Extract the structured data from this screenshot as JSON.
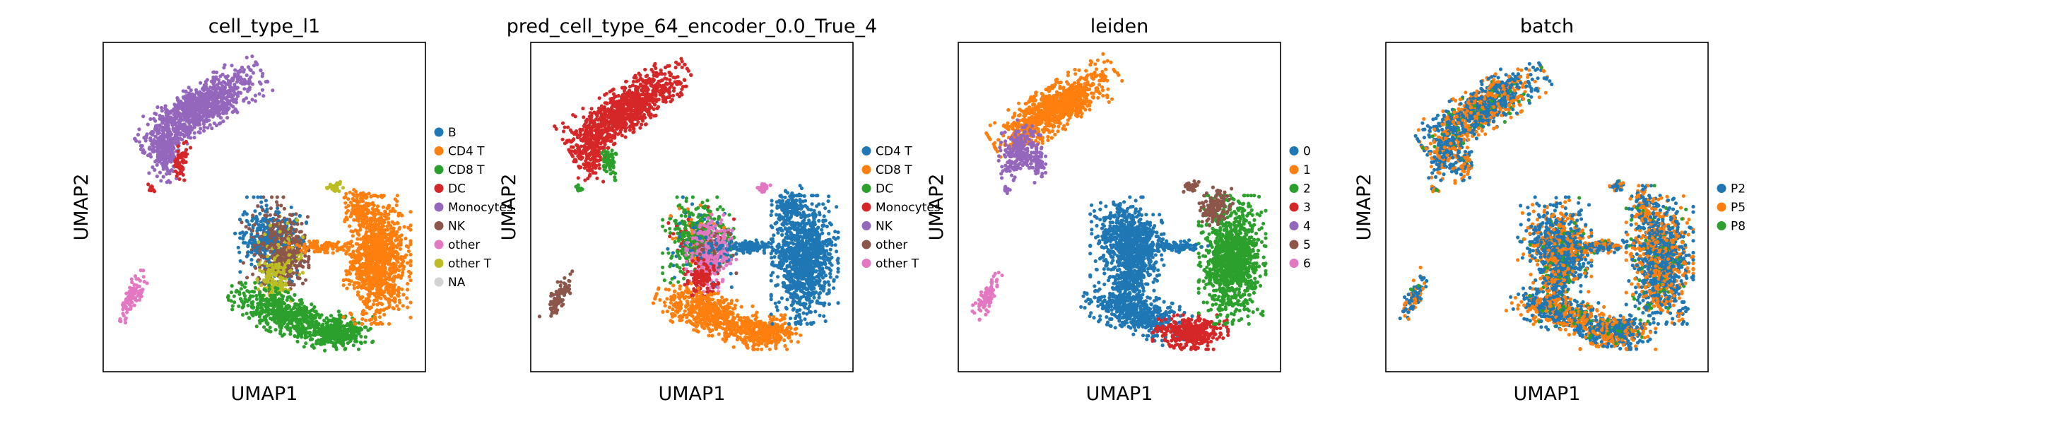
{
  "chart_data": [
    {
      "type": "scatter",
      "title": "cell_type_l1",
      "xlabel": "UMAP1",
      "ylabel": "UMAP2",
      "grid": false,
      "legend_position": "right",
      "legend": [
        {
          "name": "B",
          "color": "#1f77b4"
        },
        {
          "name": "CD4 T",
          "color": "#ff7f0e"
        },
        {
          "name": "CD8 T",
          "color": "#2ca02c"
        },
        {
          "name": "DC",
          "color": "#d62728"
        },
        {
          "name": "Monocytes",
          "color": "#9467bd"
        },
        {
          "name": "NK",
          "color": "#8c564b"
        },
        {
          "name": "other",
          "color": "#e377c2"
        },
        {
          "name": "other T",
          "color": "#bcbd22"
        },
        {
          "name": "NA",
          "color": "#d3d3d3"
        }
      ]
    },
    {
      "type": "scatter",
      "title": "pred_cell_type_64_encoder_0.0_True_4",
      "xlabel": "UMAP1",
      "ylabel": "UMAP2",
      "grid": false,
      "legend_position": "right",
      "legend": [
        {
          "name": "CD4 T",
          "color": "#1f77b4"
        },
        {
          "name": "CD8 T",
          "color": "#ff7f0e"
        },
        {
          "name": "DC",
          "color": "#2ca02c"
        },
        {
          "name": "Monocytes",
          "color": "#d62728"
        },
        {
          "name": "NK",
          "color": "#9467bd"
        },
        {
          "name": "other",
          "color": "#8c564b"
        },
        {
          "name": "other T",
          "color": "#e377c2"
        }
      ]
    },
    {
      "type": "scatter",
      "title": "leiden",
      "xlabel": "UMAP1",
      "ylabel": "UMAP2",
      "grid": false,
      "legend_position": "right",
      "legend": [
        {
          "name": "0",
          "color": "#1f77b4"
        },
        {
          "name": "1",
          "color": "#ff7f0e"
        },
        {
          "name": "2",
          "color": "#2ca02c"
        },
        {
          "name": "3",
          "color": "#d62728"
        },
        {
          "name": "4",
          "color": "#9467bd"
        },
        {
          "name": "5",
          "color": "#8c564b"
        },
        {
          "name": "6",
          "color": "#e377c2"
        }
      ]
    },
    {
      "type": "scatter",
      "title": "batch",
      "xlabel": "UMAP1",
      "ylabel": "UMAP2",
      "grid": false,
      "legend_position": "right",
      "legend": [
        {
          "name": "P2",
          "color": "#1f77b4"
        },
        {
          "name": "P5",
          "color": "#ff7f0e"
        },
        {
          "name": "P8",
          "color": "#2ca02c"
        }
      ]
    }
  ]
}
